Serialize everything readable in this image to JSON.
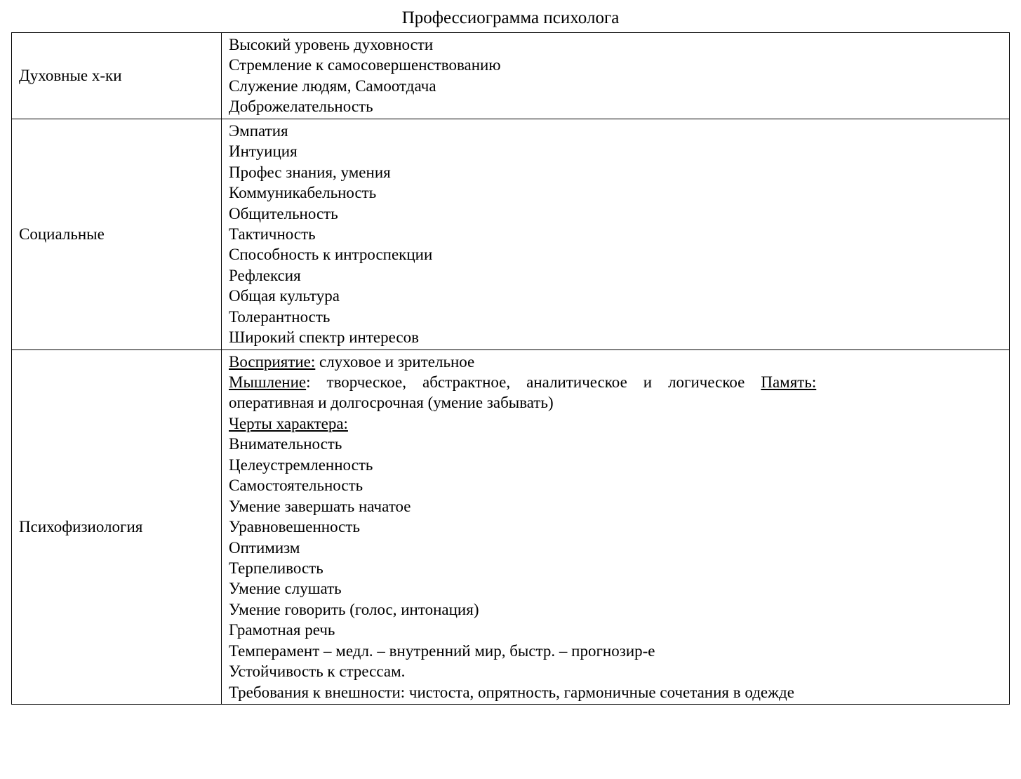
{
  "title": "Профессиограмма психолога",
  "row1": {
    "label": "Духовные х-ки",
    "l1": "Высокий уровень духовности",
    "l2": "Стремление к самосовершенствованию",
    "l3": "Служение людям, Самоотдача",
    "l4": "Доброжелательность"
  },
  "row2": {
    "label": "Социальные",
    "l1": "Эмпатия",
    "l2": "Интуиция",
    "l3": "Профес знания, умения",
    "l4": "Коммуникабельность",
    "l5": "Общительность",
    "l6": "Тактичность",
    "l7": "Способность к интроспекции",
    "l8": "Рефлексия",
    "l9": "Общая культура",
    "l10": "Толерантность",
    "l11": "Широкий спектр интересов"
  },
  "row3": {
    "label": "Психофизиология",
    "p1_u": "Восприятие:",
    "p1_rest": " слуховое и зрительное",
    "p2_u": "Мышление",
    "p2_mid": ": творческое, абстрактное, аналитическое и логическое ",
    "p2_u2": "Память:",
    "p2_tail": "оперативная и долгосрочная (умение забывать)",
    "p3_u": "Черты характера:",
    "l4": "Внимательность",
    "l5": "Целеустремленность",
    "l6": "Самостоятельность",
    "l7": "Умение завершать начатое",
    "l8": "Уравновешенность",
    "l9": "Оптимизм",
    "l10": "Терпеливость",
    "l11": "Умение слушать",
    "l12": "Умение говорить (голос, интонация)",
    "l13": "Грамотная речь",
    "l14": "Темперамент – медл. – внутренний мир, быстр. – прогнозир-е",
    "l15": "Устойчивость к стрессам.",
    "l16": "Требования к внешности: чистоста, опрятность, гармоничные сочетания в одежде"
  }
}
